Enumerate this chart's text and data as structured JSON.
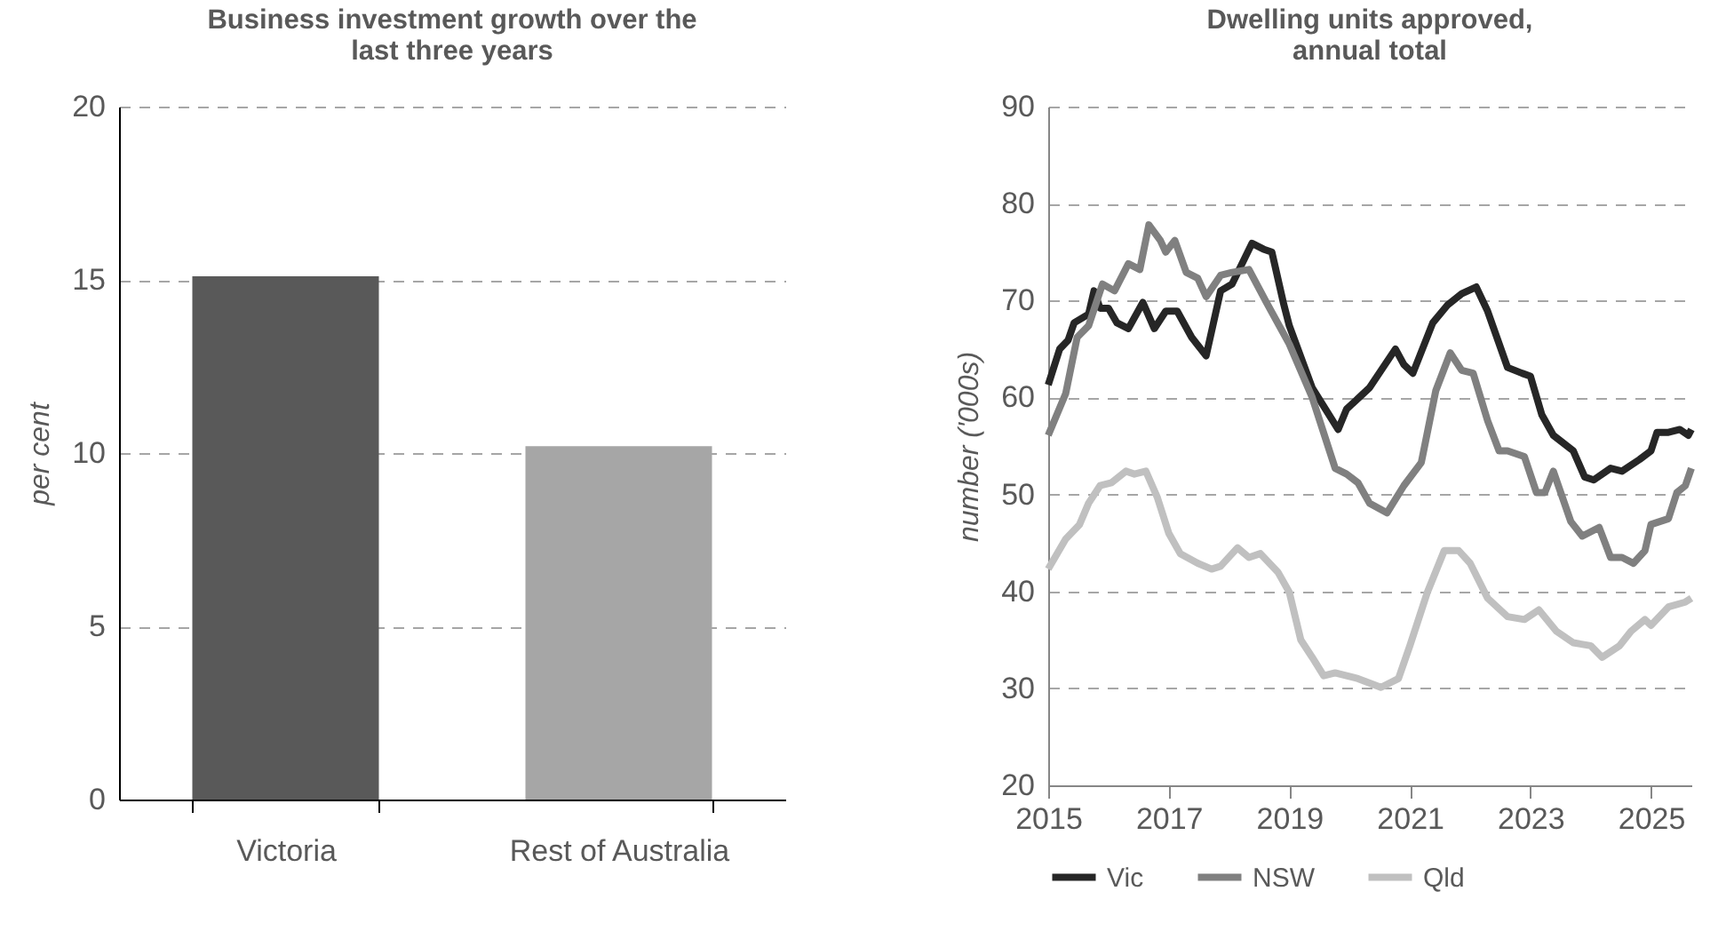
{
  "chart_data": [
    {
      "type": "bar",
      "title": "Business investment growth over the last three years",
      "ylabel": "per cent",
      "categories": [
        "Victoria",
        "Rest of Australia"
      ],
      "values": [
        15.1,
        10.2
      ],
      "colors": [
        "#595959",
        "#a6a6a6"
      ],
      "ylim": [
        0,
        20
      ],
      "yticks": [
        0,
        5,
        10,
        15,
        20
      ],
      "grid": "y"
    },
    {
      "type": "line",
      "title": "Dwelling units approved, annual total",
      "ylabel": "number ('000s)",
      "xlim": [
        2015,
        2025.67
      ],
      "xticks": [
        2015,
        2017,
        2019,
        2021,
        2023,
        2025
      ],
      "ylim": [
        20,
        90
      ],
      "yticks": [
        20,
        30,
        40,
        50,
        60,
        70,
        80,
        90
      ],
      "grid": "y",
      "legend": "bottom",
      "line_style": "solid",
      "marker": "none",
      "series": [
        {
          "name": "Vic",
          "color": "#262626",
          "x": [
            2015.0,
            2015.19,
            2015.33,
            2015.43,
            2015.67,
            2015.76,
            2015.86,
            2016.0,
            2016.14,
            2016.33,
            2016.57,
            2016.76,
            2016.95,
            2017.14,
            2017.38,
            2017.62,
            2017.86,
            2018.05,
            2018.38,
            2018.57,
            2018.71,
            2018.9,
            2019.0,
            2019.38,
            2019.81,
            2019.95,
            2020.33,
            2020.76,
            2020.9,
            2021.05,
            2021.38,
            2021.62,
            2021.86,
            2022.1,
            2022.29,
            2022.62,
            2022.86,
            2023.0,
            2023.19,
            2023.38,
            2023.71,
            2023.9,
            2024.05,
            2024.33,
            2024.52,
            2024.81,
            2025.0,
            2025.1,
            2025.29,
            2025.48,
            2025.62,
            2025.67
          ],
          "values": [
            61.3,
            65,
            65.9,
            67.7,
            68.6,
            71,
            69.2,
            69.2,
            67.7,
            67.1,
            69.8,
            67.1,
            68.9,
            68.9,
            66.2,
            64.3,
            71,
            71.7,
            75.9,
            75.3,
            75,
            69.8,
            67.4,
            61,
            56.7,
            58.8,
            61,
            65,
            63.4,
            62.5,
            67.7,
            69.5,
            70.7,
            71.4,
            68.9,
            63.1,
            62.5,
            62.2,
            58.2,
            56.1,
            54.5,
            51.8,
            51.5,
            52.7,
            52.4,
            53.6,
            54.5,
            56.4,
            56.4,
            56.7,
            56.1,
            56.7
          ]
        },
        {
          "name": "NSW",
          "color": "#808080",
          "x": [
            2015.0,
            2015.29,
            2015.48,
            2015.67,
            2015.9,
            2016.1,
            2016.33,
            2016.52,
            2016.67,
            2016.86,
            2016.95,
            2017.1,
            2017.29,
            2017.48,
            2017.62,
            2017.86,
            2018.05,
            2018.33,
            2018.62,
            2019.0,
            2019.38,
            2019.76,
            2019.95,
            2020.14,
            2020.33,
            2020.62,
            2020.9,
            2021.19,
            2021.43,
            2021.67,
            2021.86,
            2022.05,
            2022.29,
            2022.48,
            2022.62,
            2022.9,
            2023.1,
            2023.24,
            2023.38,
            2023.67,
            2023.86,
            2024.14,
            2024.33,
            2024.52,
            2024.71,
            2024.9,
            2025.0,
            2025.29,
            2025.43,
            2025.57,
            2025.67
          ],
          "values": [
            56.1,
            60.4,
            66.2,
            67.4,
            71.7,
            71,
            73.8,
            73.2,
            77.8,
            76.2,
            75,
            76.2,
            72.9,
            72.3,
            70.4,
            72.6,
            72.9,
            73.2,
            69.8,
            65.5,
            60,
            52.7,
            52.1,
            51.2,
            49.1,
            48.1,
            50.9,
            53.3,
            60.7,
            64.6,
            62.8,
            62.5,
            57.6,
            54.5,
            54.5,
            53.9,
            50.2,
            50.2,
            52.4,
            47.2,
            45.7,
            46.6,
            43.5,
            43.5,
            42.9,
            44.2,
            46.9,
            47.5,
            50.2,
            50.9,
            52.7
          ]
        },
        {
          "name": "Qld",
          "color": "#c0c0c0",
          "x": [
            2015.0,
            2015.29,
            2015.52,
            2015.67,
            2015.86,
            2016.05,
            2016.29,
            2016.43,
            2016.62,
            2016.81,
            2017.0,
            2017.19,
            2017.48,
            2017.71,
            2017.86,
            2018.14,
            2018.33,
            2018.52,
            2018.81,
            2019.0,
            2019.19,
            2019.38,
            2019.57,
            2019.76,
            2020.14,
            2020.52,
            2020.81,
            2021.0,
            2021.29,
            2021.57,
            2021.81,
            2022.0,
            2022.29,
            2022.62,
            2022.9,
            2023.14,
            2023.43,
            2023.71,
            2024.0,
            2024.19,
            2024.48,
            2024.67,
            2024.9,
            2025.0,
            2025.29,
            2025.57,
            2025.67
          ],
          "values": [
            42.3,
            45.4,
            46.9,
            49.1,
            50.9,
            51.2,
            52.4,
            52.1,
            52.4,
            49.7,
            46,
            43.9,
            42.9,
            42.3,
            42.6,
            44.5,
            43.5,
            43.9,
            42,
            39.9,
            35,
            33.2,
            31.3,
            31.6,
            31,
            30.1,
            31,
            34.4,
            39.9,
            44.2,
            44.2,
            42.9,
            39.3,
            37.4,
            37.1,
            38.1,
            35.9,
            34.7,
            34.4,
            33.2,
            34.4,
            35.9,
            37.1,
            36.5,
            38.4,
            38.9,
            39.3
          ]
        }
      ]
    }
  ]
}
